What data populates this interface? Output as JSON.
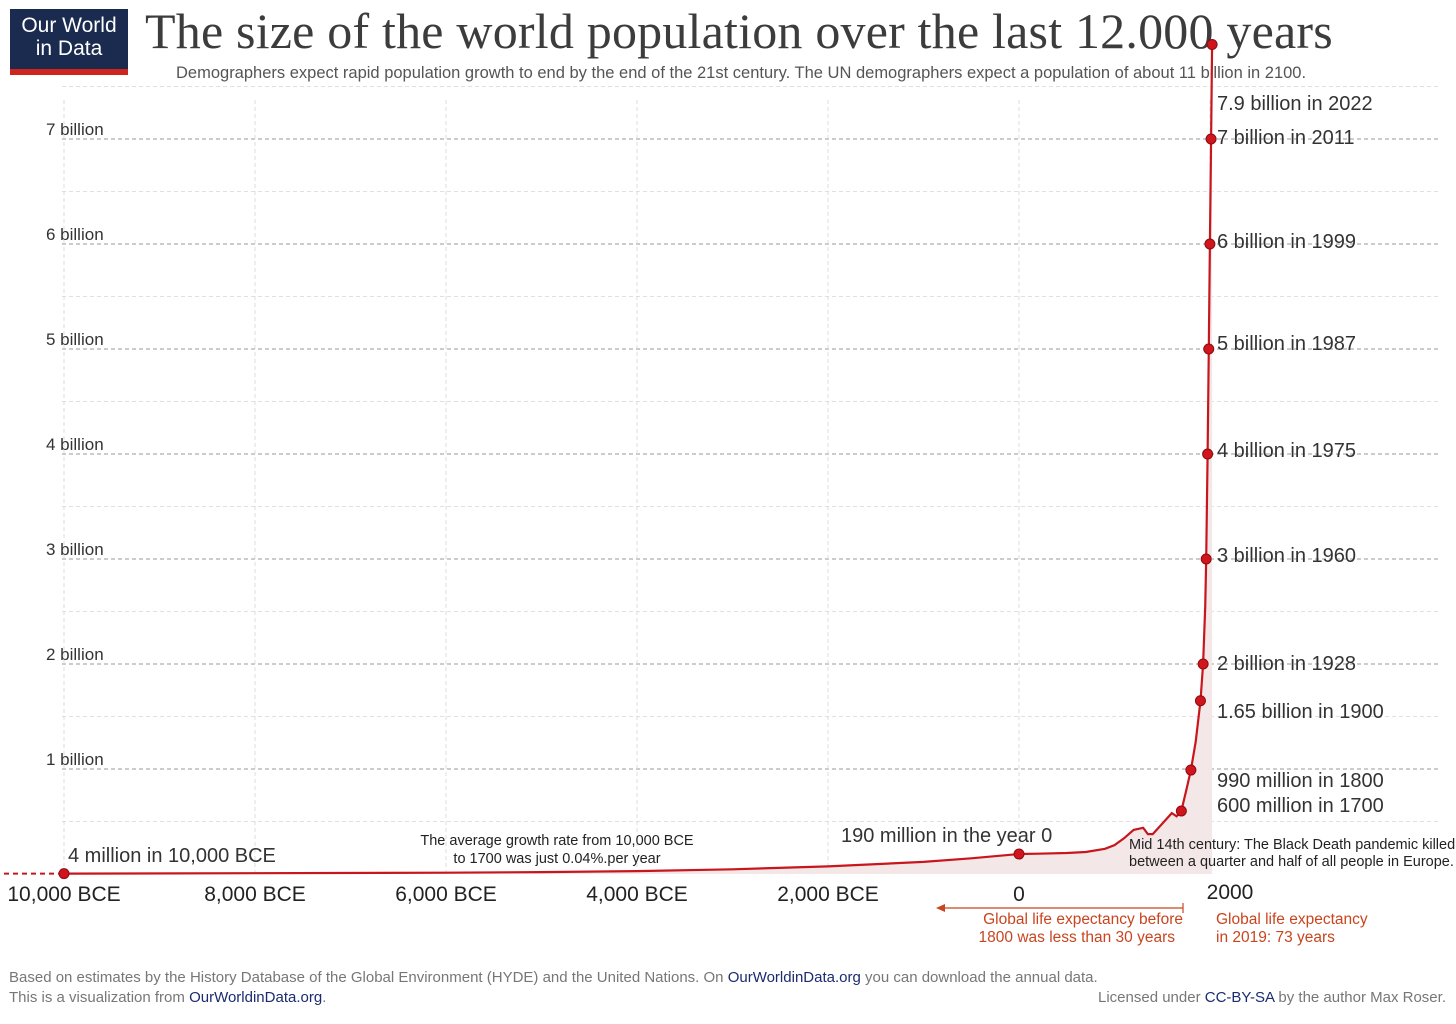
{
  "logo": {
    "line1": "Our World",
    "line2": "in Data"
  },
  "title": "The size of the world population over the last 12.000 years",
  "subtitle": "Demographers expect rapid population growth to end by the end of the 21st century. The UN demographers expect a population of about 11 billion in 2100.",
  "colors": {
    "line": "#c8161d",
    "fill": "#f4e7e7",
    "orange": "#c8451f",
    "logo_bg": "#1a2b4f",
    "logo_bar": "#ce261e"
  },
  "chart_data": {
    "type": "line",
    "title": "The size of the world population over the last 12.000 years",
    "xlabel": "",
    "ylabel": "",
    "xlim": [
      -10600,
      2050
    ],
    "ylim": [
      0,
      8000000000
    ],
    "grid": true,
    "yticks": [
      {
        "value": 1000000000,
        "label": "1 billion"
      },
      {
        "value": 2000000000,
        "label": "2 billion"
      },
      {
        "value": 3000000000,
        "label": "3 billion"
      },
      {
        "value": 4000000000,
        "label": "4 billion"
      },
      {
        "value": 5000000000,
        "label": "5 billion"
      },
      {
        "value": 6000000000,
        "label": "6 billion"
      },
      {
        "value": 7000000000,
        "label": "7 billion"
      }
    ],
    "xticks": [
      {
        "value": -10000,
        "label": "10,000 BCE"
      },
      {
        "value": -8000,
        "label": "8,000 BCE"
      },
      {
        "value": -6000,
        "label": "6,000 BCE"
      },
      {
        "value": -4000,
        "label": "4,000 BCE"
      },
      {
        "value": -2000,
        "label": "2,000 BCE"
      },
      {
        "value": 0,
        "label": "0"
      },
      {
        "value": 2000,
        "label": "2000"
      }
    ],
    "series": [
      {
        "x": [
          -10000,
          -8000,
          -6000,
          -5000,
          -4000,
          -3000,
          -2000,
          -1000,
          -500,
          0,
          200,
          500,
          700,
          900,
          1000,
          1100,
          1200,
          1300,
          1350,
          1400,
          1500,
          1600,
          1650,
          1700,
          1750,
          1800,
          1850,
          1900,
          1928,
          1950,
          1960,
          1975,
          1987,
          1999,
          2011,
          2022
        ],
        "y": [
          4000000,
          8000000,
          12000000,
          18000000,
          28000000,
          45000000,
          72000000,
          115000000,
          150000000,
          190000000,
          193000000,
          200000000,
          210000000,
          240000000,
          275000000,
          340000000,
          420000000,
          440000000,
          380000000,
          380000000,
          480000000,
          580000000,
          550000000,
          600000000,
          790000000,
          990000000,
          1260000000,
          1650000000,
          2000000000,
          2540000000,
          3000000000,
          4000000000,
          5000000000,
          6000000000,
          7000000000,
          7900000000
        ]
      }
    ],
    "points": [
      {
        "x": -10000,
        "y": 4000000,
        "label": "4 million in 10,000 BCE"
      },
      {
        "x": 0,
        "y": 190000000,
        "label": "190 million in the year 0"
      },
      {
        "x": 1700,
        "y": 600000000,
        "label": "600 million in 1700"
      },
      {
        "x": 1800,
        "y": 990000000,
        "label": "990 million in 1800"
      },
      {
        "x": 1900,
        "y": 1650000000,
        "label": "1.65 billion in 1900"
      },
      {
        "x": 1928,
        "y": 2000000000,
        "label": "2 billion in 1928"
      },
      {
        "x": 1960,
        "y": 3000000000,
        "label": "3 billion in 1960"
      },
      {
        "x": 1975,
        "y": 4000000000,
        "label": "4 billion in 1975"
      },
      {
        "x": 1987,
        "y": 5000000000,
        "label": "5 billion in 1987"
      },
      {
        "x": 1999,
        "y": 6000000000,
        "label": "6 billion in 1999"
      },
      {
        "x": 2011,
        "y": 7000000000,
        "label": "7 billion in 2011"
      },
      {
        "x": 2022,
        "y": 7900000000,
        "label": "7.9 billion in 2022"
      }
    ],
    "annotations": {
      "growth_line1": "The average growth rate from 10,000 BCE",
      "growth_line2": "to 1700 was just  0.04%.per year",
      "plague_line1": "Mid 14th century: The Black Death pandemic killed",
      "plague_line2": "between a quarter and half of all people in Europe.",
      "life_before_line1": "Global life expectancy before",
      "life_before_line2": "1800 was less than 30 years",
      "life_2019_line1": "Global life expectancy",
      "life_2019_line2": "in 2019: 73 years"
    }
  },
  "footer": {
    "line1_a": "Based on estimates by the History Database of the Global Environment (HYDE) and the United Nations. On ",
    "line1_link": "OurWorldinData.org",
    "line1_b": " you can download the annual data.",
    "line2_a": "This is a visualization from ",
    "line2_link": "OurWorldinData.org",
    "line2_b": ".",
    "license_a": "Licensed under ",
    "license_link": "CC-BY-SA",
    "license_b": " by the author Max Roser."
  }
}
